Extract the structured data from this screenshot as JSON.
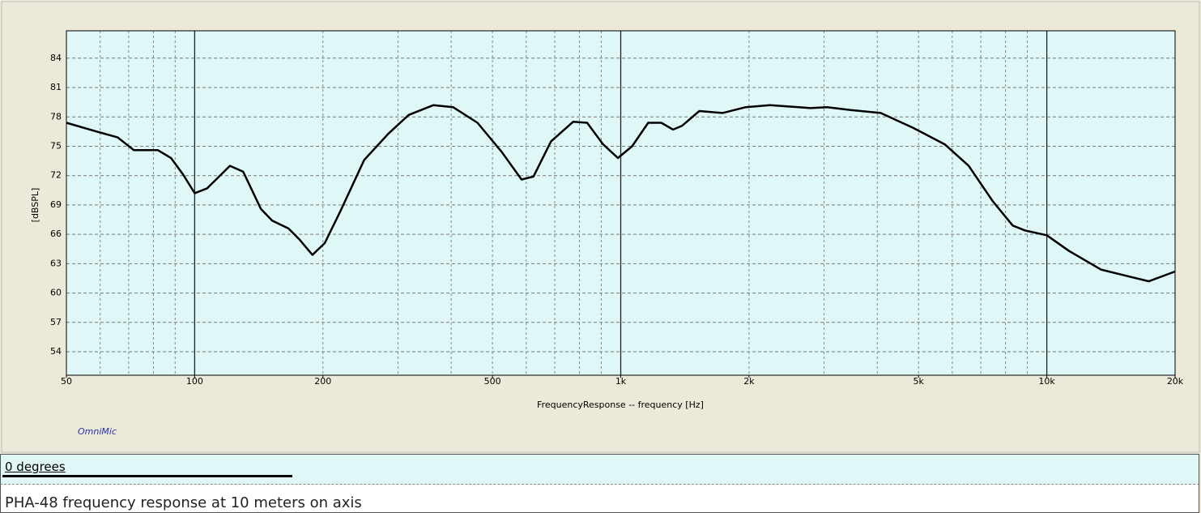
{
  "chart_data": {
    "type": "line",
    "xlabel": "FrequencyResponse -- frequency [Hz]",
    "ylabel": "[dBSPL]",
    "watermark": "OmniMic",
    "caption": "PHA-48 frequency response at 10 meters on axis",
    "xscale": "log",
    "grid": true,
    "xlim": [
      50,
      20000
    ],
    "ylim": [
      51.6,
      86.8
    ],
    "xticks": [
      50,
      100,
      200,
      500,
      {
        "value": 1000,
        "label": "1k"
      },
      {
        "value": 2000,
        "label": "2k"
      },
      {
        "value": 5000,
        "label": "5k"
      },
      {
        "value": 10000,
        "label": "10k"
      },
      {
        "value": 20000,
        "label": "20k"
      }
    ],
    "yticks": [
      54,
      57,
      60,
      63,
      66,
      69,
      72,
      75,
      78,
      81,
      84
    ],
    "x": [
      50,
      59,
      66,
      72,
      82,
      88,
      94,
      100,
      107,
      121,
      130,
      143,
      152,
      166,
      176,
      189,
      202,
      220,
      250,
      285,
      318,
      363,
      404,
      461,
      526,
      585,
      624,
      686,
      773,
      834,
      909,
      985,
      1063,
      1160,
      1245,
      1327,
      1394,
      1529,
      1734,
      1966,
      2239,
      2613,
      2787,
      3047,
      3461,
      4074,
      4844,
      5760,
      6554,
      7461,
      8315,
      8880,
      10000,
      11276,
      13396,
      15916,
      17357,
      20000
    ],
    "series": [
      {
        "name": "0 degrees",
        "color": "#000000",
        "values": [
          77.4,
          76.5,
          75.9,
          74.6,
          74.6,
          73.8,
          72.1,
          70.2,
          70.7,
          73.0,
          72.4,
          68.6,
          67.4,
          66.6,
          65.5,
          63.9,
          65.1,
          68.4,
          73.6,
          76.3,
          78.2,
          79.2,
          79.0,
          77.4,
          74.4,
          71.6,
          71.9,
          75.5,
          77.5,
          77.4,
          75.2,
          73.8,
          75.0,
          77.4,
          77.4,
          76.7,
          77.1,
          78.6,
          78.4,
          79.0,
          79.2,
          79.0,
          78.9,
          79.0,
          78.7,
          78.4,
          76.9,
          75.2,
          73.0,
          69.4,
          66.9,
          66.4,
          65.9,
          64.3,
          62.4,
          61.6,
          61.2,
          62.2
        ]
      }
    ]
  }
}
